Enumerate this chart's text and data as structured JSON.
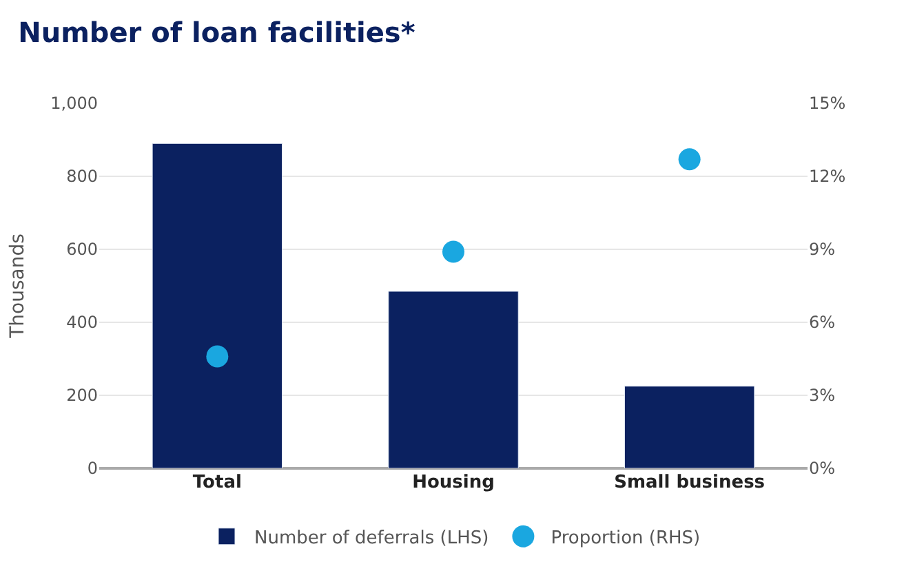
{
  "chart_data": {
    "type": "bar",
    "title": "Number of loan facilities*",
    "ylabel": "Thousands",
    "categories": [
      "Total",
      "Housing",
      "Small business"
    ],
    "series": [
      {
        "name": "Number of deferrals (LHS)",
        "color": "#0b2160",
        "values": [
          890,
          485,
          225
        ]
      },
      {
        "name": "Proportion (RHS)",
        "type": "scatter",
        "axis": "y2",
        "color": "#1aa7e0",
        "values": [
          4.6,
          8.9,
          12.7
        ]
      }
    ],
    "ylim": [
      0,
      1000
    ],
    "yticks": [
      0,
      200,
      400,
      600,
      800,
      {
        "value": 1000,
        "label": "1,000"
      }
    ],
    "y2lim": [
      0,
      15
    ],
    "y2ticks": [
      {
        "value": 0,
        "label": "0%"
      },
      {
        "value": 3,
        "label": "3%"
      },
      {
        "value": 6,
        "label": "6%"
      },
      {
        "value": 9,
        "label": "9%"
      },
      {
        "value": 12,
        "label": "12%"
      },
      {
        "value": 15,
        "label": "15%"
      }
    ],
    "grid": "y",
    "legend": "bottom",
    "marker": "circle"
  }
}
